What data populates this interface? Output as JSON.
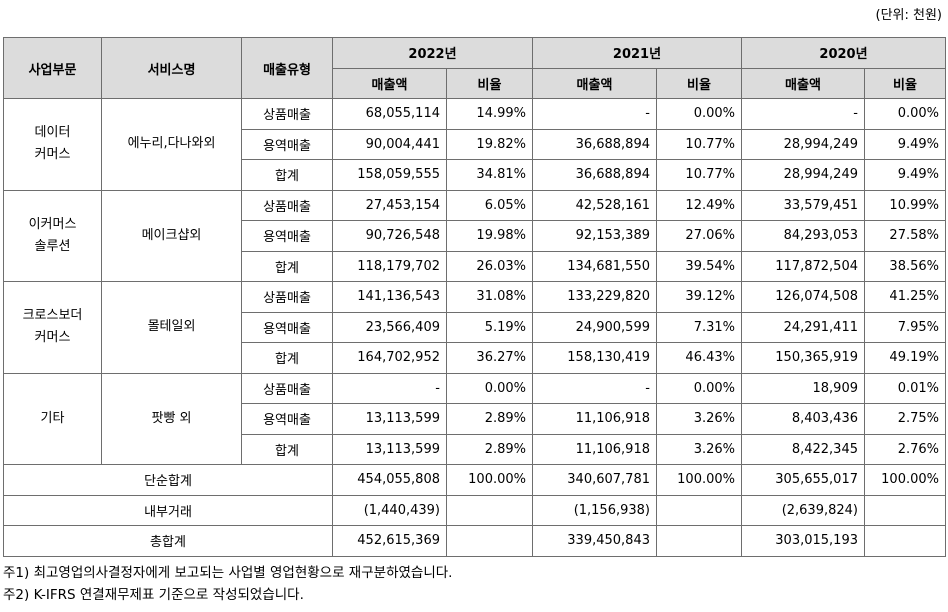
{
  "unit_note": "(단위: 천원)",
  "headers": {
    "segment": "사업부문",
    "service": "서비스명",
    "sales_type": "매출유형",
    "years": [
      "2022년",
      "2021년",
      "2020년"
    ],
    "amount": "매출액",
    "ratio": "비율"
  },
  "groups": [
    {
      "segment_lines": [
        "데이터",
        "커머스"
      ],
      "service": "에누리,다나와외",
      "rows": [
        {
          "type": "상품매출",
          "cells": [
            "68,055,114",
            "14.99%",
            "-",
            "0.00%",
            "-",
            "0.00%"
          ]
        },
        {
          "type": "용역매출",
          "cells": [
            "90,004,441",
            "19.82%",
            "36,688,894",
            "10.77%",
            "28,994,249",
            "9.49%"
          ]
        },
        {
          "type": "합계",
          "cells": [
            "158,059,555",
            "34.81%",
            "36,688,894",
            "10.77%",
            "28,994,249",
            "9.49%"
          ]
        }
      ]
    },
    {
      "segment_lines": [
        "이커머스",
        "솔루션"
      ],
      "service": "메이크샵외",
      "rows": [
        {
          "type": "상품매출",
          "cells": [
            "27,453,154",
            "6.05%",
            "42,528,161",
            "12.49%",
            "33,579,451",
            "10.99%"
          ]
        },
        {
          "type": "용역매출",
          "cells": [
            "90,726,548",
            "19.98%",
            "92,153,389",
            "27.06%",
            "84,293,053",
            "27.58%"
          ]
        },
        {
          "type": "합계",
          "cells": [
            "118,179,702",
            "26.03%",
            "134,681,550",
            "39.54%",
            "117,872,504",
            "38.56%"
          ]
        }
      ]
    },
    {
      "segment_lines": [
        "크로스보더",
        "커머스"
      ],
      "service": "몰테일외",
      "rows": [
        {
          "type": "상품매출",
          "cells": [
            "141,136,543",
            "31.08%",
            "133,229,820",
            "39.12%",
            "126,074,508",
            "41.25%"
          ]
        },
        {
          "type": "용역매출",
          "cells": [
            "23,566,409",
            "5.19%",
            "24,900,599",
            "7.31%",
            "24,291,411",
            "7.95%"
          ]
        },
        {
          "type": "합계",
          "cells": [
            "164,702,952",
            "36.27%",
            "158,130,419",
            "46.43%",
            "150,365,919",
            "49.19%"
          ]
        }
      ]
    },
    {
      "segment_lines": [
        "기타"
      ],
      "service": "팟빵 외",
      "rows": [
        {
          "type": "상품매출",
          "cells": [
            "-",
            "0.00%",
            "-",
            "0.00%",
            "18,909",
            "0.01%"
          ]
        },
        {
          "type": "용역매출",
          "cells": [
            "13,113,599",
            "2.89%",
            "11,106,918",
            "3.26%",
            "8,403,436",
            "2.75%"
          ]
        },
        {
          "type": "합계",
          "cells": [
            "13,113,599",
            "2.89%",
            "11,106,918",
            "3.26%",
            "8,422,345",
            "2.76%"
          ]
        }
      ]
    }
  ],
  "totals": [
    {
      "label": "단순합계",
      "cells": [
        "454,055,808",
        "100.00%",
        "340,607,781",
        "100.00%",
        "305,655,017",
        "100.00%"
      ]
    },
    {
      "label": "내부거래",
      "cells": [
        "(1,440,439)",
        "",
        "(1,156,938)",
        "",
        "(2,639,824)",
        ""
      ]
    },
    {
      "label": "총합계",
      "cells": [
        "452,615,369",
        "",
        "339,450,843",
        "",
        "303,015,193",
        ""
      ]
    }
  ],
  "footnotes": [
    "주1) 최고영업의사결정자에게 보고되는 사업별 영업현황으로 재구분하였습니다.",
    "주2) K-IFRS 연결재무제표 기준으로 작성되었습니다."
  ]
}
